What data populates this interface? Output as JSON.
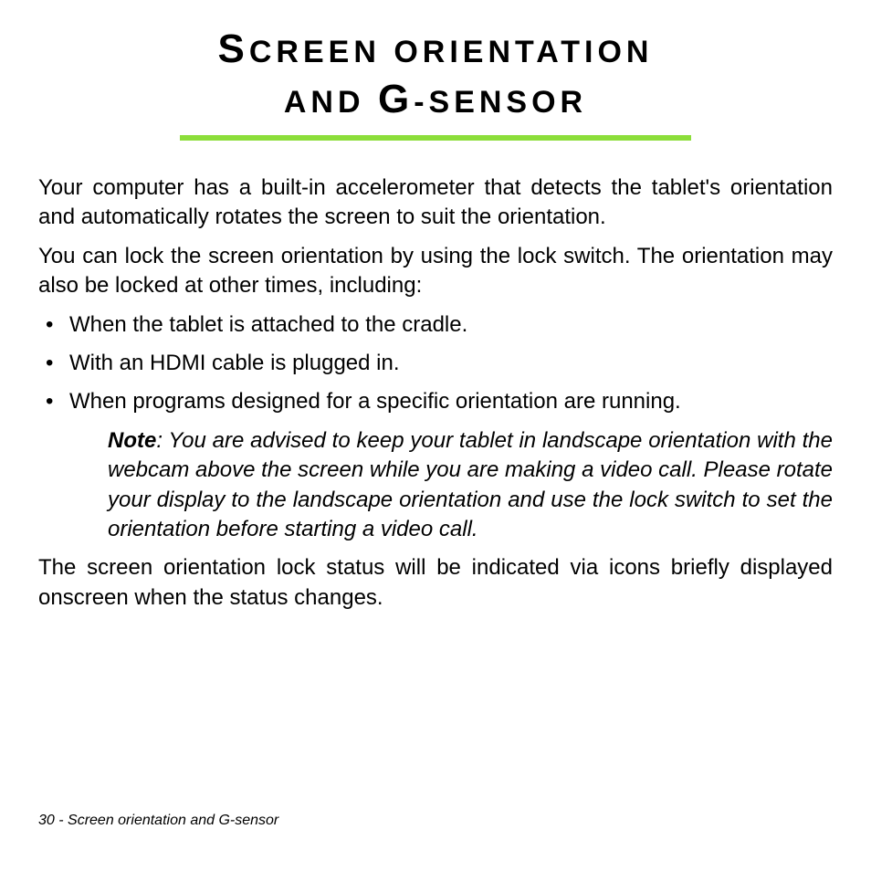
{
  "title": {
    "line1": {
      "cap": "S",
      "rest": "CREEN ORIENTATION"
    },
    "line2_a": {
      "rest_before": "AND ",
      "cap": "G",
      "rest_after": "-SENSOR"
    }
  },
  "rule_color": "#8cde3a",
  "paragraphs": {
    "p1": "Your computer has a built-in accelerometer that detects the tablet's orientation and automatically rotates the screen to suit the orientation.",
    "p2": "You can lock the screen orientation by using the lock switch. The orientation may also be locked at other times, including:",
    "p3": "The screen orientation lock status will be indicated via icons briefly displayed onscreen when the status changes."
  },
  "bullets": [
    "When the tablet is attached to the cradle.",
    "With an HDMI cable is plugged in.",
    "When programs designed for a specific orientation are running."
  ],
  "note": {
    "label": "Note",
    "text": ": You are advised to keep your tablet in landscape orientation with the webcam above the screen while you are making a video call. Please rotate your display to the landscape orientation and use the lock switch to set the orientation before starting a video call."
  },
  "footer": "30 - Screen orientation and G-sensor"
}
